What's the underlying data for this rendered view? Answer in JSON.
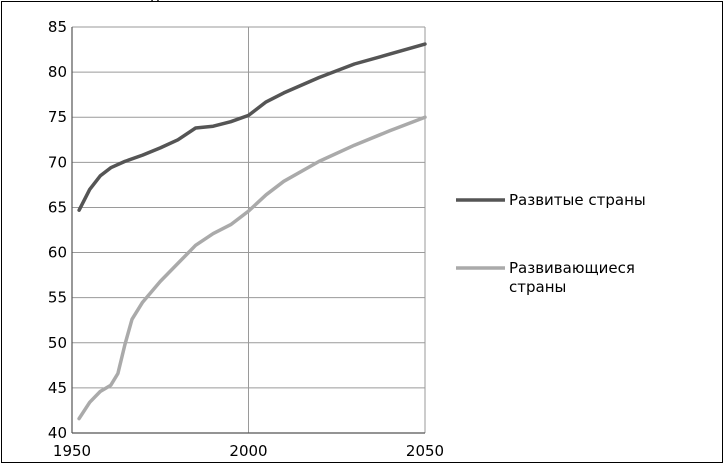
{
  "header_fragment": "р",
  "chart_data": {
    "type": "line",
    "title": "",
    "xlabel": "",
    "ylabel": "",
    "xlim": [
      1950,
      2050
    ],
    "ylim": [
      40,
      85
    ],
    "x_ticks": [
      1950,
      2000,
      2050
    ],
    "y_ticks": [
      40,
      45,
      50,
      55,
      60,
      65,
      70,
      75,
      80,
      85
    ],
    "grid": "horizontal and vertical",
    "legend_position": "right",
    "series": [
      {
        "name": "Развитые страны",
        "color": "#555555",
        "x": [
          1952,
          1955,
          1958,
          1961,
          1965,
          1970,
          1975,
          1980,
          1985,
          1990,
          1995,
          2000,
          2005,
          2010,
          2020,
          2030,
          2040,
          2050
        ],
        "y": [
          64.7,
          67.0,
          68.5,
          69.4,
          70.1,
          70.8,
          71.6,
          72.5,
          73.8,
          74.0,
          74.5,
          75.2,
          76.7,
          77.7,
          79.4,
          80.9,
          82.0,
          83.1
        ]
      },
      {
        "name": "Развивающиеся страны",
        "color": "#aaaaaa",
        "x": [
          1952,
          1955,
          1958,
          1961,
          1963,
          1965,
          1967,
          1970,
          1975,
          1980,
          1985,
          1990,
          1995,
          2000,
          2005,
          2010,
          2020,
          2030,
          2040,
          2050
        ],
        "y": [
          41.6,
          43.4,
          44.6,
          45.3,
          46.6,
          49.8,
          52.6,
          54.5,
          56.8,
          58.8,
          60.8,
          62.1,
          63.1,
          64.6,
          66.4,
          67.9,
          70.1,
          71.9,
          73.5,
          75.0
        ]
      }
    ]
  }
}
